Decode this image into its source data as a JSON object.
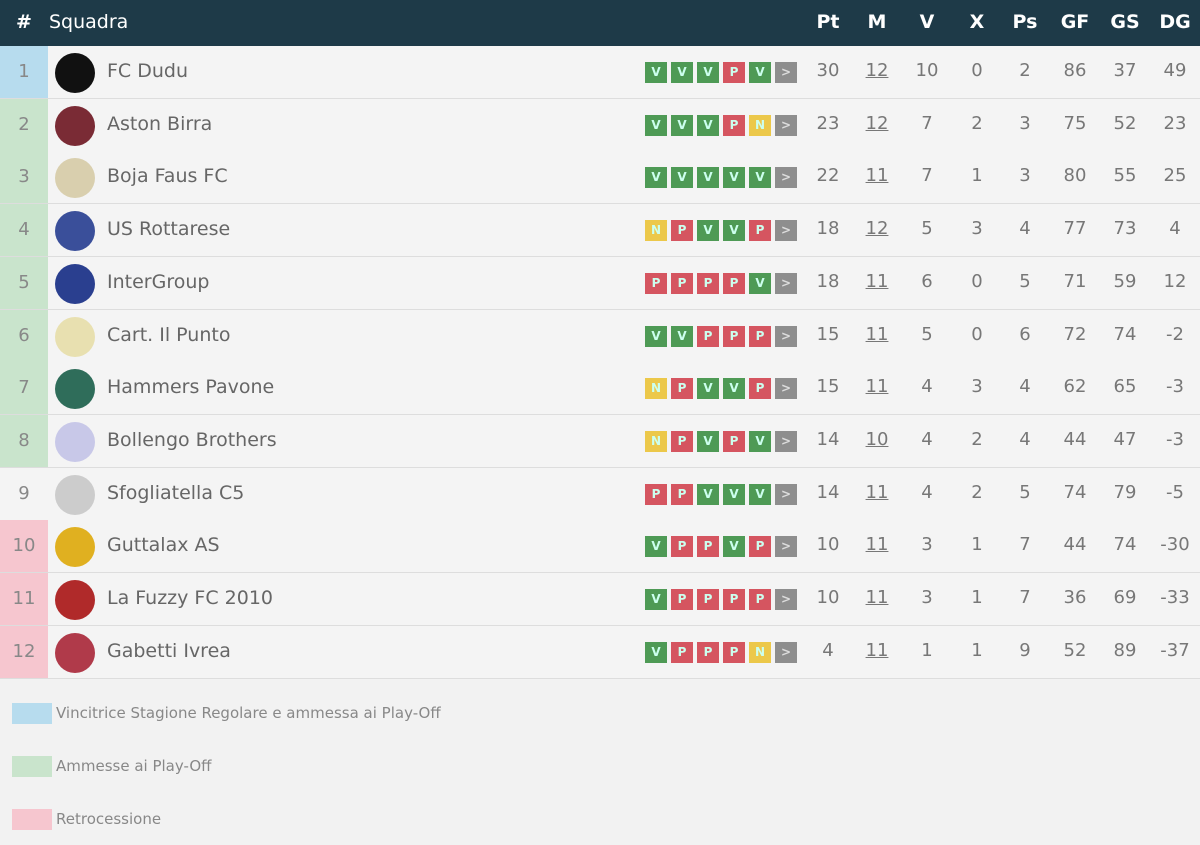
{
  "header": {
    "pos": "#",
    "team": "Squadra",
    "cols": [
      "Pt",
      "M",
      "V",
      "X",
      "Ps",
      "GF",
      "GS",
      "DG"
    ]
  },
  "colors": {
    "header": "#1e3a48",
    "winner": "#b7dcee",
    "playoff": "#c9e4cc",
    "relegation": "#f6c6cf",
    "V": "#4e9a55",
    "P": "#d55560",
    "N": "#ecc84a",
    "next": "#8e8e8e"
  },
  "rows": [
    {
      "pos": "1",
      "team": "FC Dudu",
      "zone": "winner",
      "form": [
        "V",
        "V",
        "V",
        "P",
        "V"
      ],
      "stats": [
        "30",
        "12",
        "10",
        "0",
        "2",
        "86",
        "37",
        "49"
      ],
      "logo": "#111"
    },
    {
      "pos": "2",
      "team": "Aston Birra",
      "zone": "playoff",
      "form": [
        "V",
        "V",
        "V",
        "P",
        "N"
      ],
      "stats": [
        "23",
        "12",
        "7",
        "2",
        "3",
        "75",
        "52",
        "23"
      ],
      "logo": "#7a2b35"
    },
    {
      "pos": "3",
      "team": "Boja Faus FC",
      "zone": "playoff",
      "form": [
        "V",
        "V",
        "V",
        "V",
        "V"
      ],
      "stats": [
        "22",
        "11",
        "7",
        "1",
        "3",
        "80",
        "55",
        "25"
      ],
      "logo": "#d9cfae"
    },
    {
      "pos": "4",
      "team": "US Rottarese",
      "zone": "playoff",
      "form": [
        "N",
        "P",
        "V",
        "V",
        "P"
      ],
      "stats": [
        "18",
        "12",
        "5",
        "3",
        "4",
        "77",
        "73",
        "4"
      ],
      "logo": "#3a4f9a"
    },
    {
      "pos": "5",
      "team": "InterGroup",
      "zone": "playoff",
      "form": [
        "P",
        "P",
        "P",
        "P",
        "V"
      ],
      "stats": [
        "18",
        "11",
        "6",
        "0",
        "5",
        "71",
        "59",
        "12"
      ],
      "logo": "#2a3f8f"
    },
    {
      "pos": "6",
      "team": "Cart. Il Punto",
      "zone": "playoff",
      "form": [
        "V",
        "V",
        "P",
        "P",
        "P"
      ],
      "stats": [
        "15",
        "11",
        "5",
        "0",
        "6",
        "72",
        "74",
        "-2"
      ],
      "logo": "#e8e0b0"
    },
    {
      "pos": "7",
      "team": "Hammers Pavone",
      "zone": "playoff",
      "form": [
        "N",
        "P",
        "V",
        "V",
        "P"
      ],
      "stats": [
        "15",
        "11",
        "4",
        "3",
        "4",
        "62",
        "65",
        "-3"
      ],
      "logo": "#2f6d5a"
    },
    {
      "pos": "8",
      "team": "Bollengo Brothers",
      "zone": "playoff",
      "form": [
        "N",
        "P",
        "V",
        "P",
        "V"
      ],
      "stats": [
        "14",
        "10",
        "4",
        "2",
        "4",
        "44",
        "47",
        "-3"
      ],
      "logo": "#c8c8e8"
    },
    {
      "pos": "9",
      "team": "Sfogliatella C5",
      "zone": "none",
      "form": [
        "P",
        "P",
        "V",
        "V",
        "V"
      ],
      "stats": [
        "14",
        "11",
        "4",
        "2",
        "5",
        "74",
        "79",
        "-5"
      ],
      "logo": "#ccc"
    },
    {
      "pos": "10",
      "team": "Guttalax AS",
      "zone": "relegation",
      "form": [
        "V",
        "P",
        "P",
        "V",
        "P"
      ],
      "stats": [
        "10",
        "11",
        "3",
        "1",
        "7",
        "44",
        "74",
        "-30"
      ],
      "logo": "#e0b020"
    },
    {
      "pos": "11",
      "team": "La Fuzzy FC 2010",
      "zone": "relegation",
      "form": [
        "V",
        "P",
        "P",
        "P",
        "P"
      ],
      "stats": [
        "10",
        "11",
        "3",
        "1",
        "7",
        "36",
        "69",
        "-33"
      ],
      "logo": "#b02a2a"
    },
    {
      "pos": "12",
      "team": "Gabetti Ivrea",
      "zone": "relegation",
      "form": [
        "V",
        "P",
        "P",
        "P",
        "N"
      ],
      "stats": [
        "4",
        "11",
        "1",
        "1",
        "9",
        "52",
        "89",
        "-37"
      ],
      "logo": "#b03a4a"
    }
  ],
  "legend": [
    {
      "label": "Vincitrice Stagione Regolare e ammessa ai Play-Off",
      "zone": "winner"
    },
    {
      "label": "Ammesse ai Play-Off",
      "zone": "playoff"
    },
    {
      "label": "Retrocessione",
      "zone": "relegation"
    }
  ]
}
